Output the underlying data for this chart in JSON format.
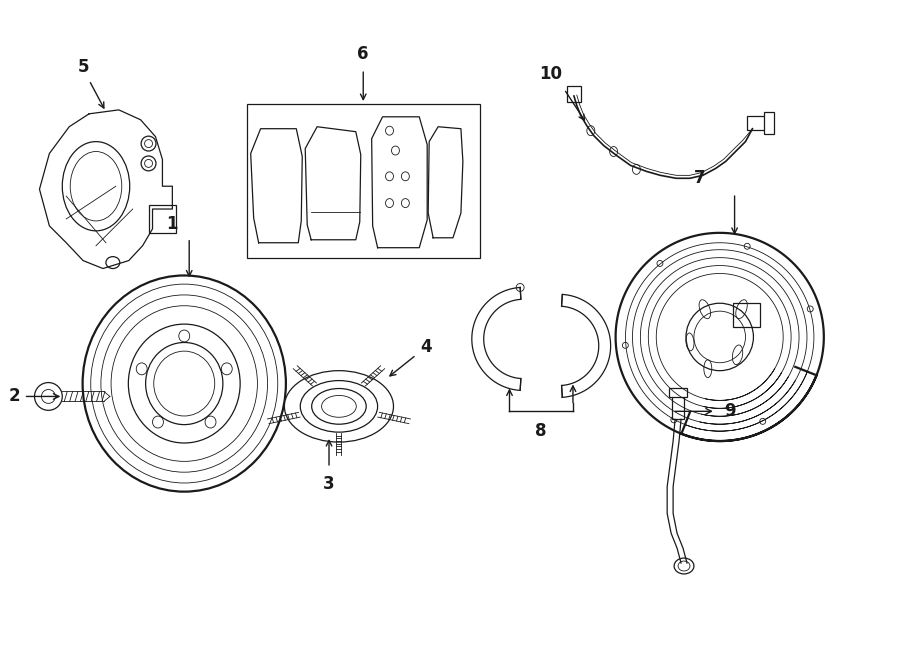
{
  "bg_color": "#ffffff",
  "line_color": "#1a1a1a",
  "lw": 1.0,
  "lw_thin": 0.6,
  "lw_thick": 1.6,
  "lw_med": 0.9,
  "label_fontsize": 12,
  "fig_width": 9.0,
  "fig_height": 6.62
}
